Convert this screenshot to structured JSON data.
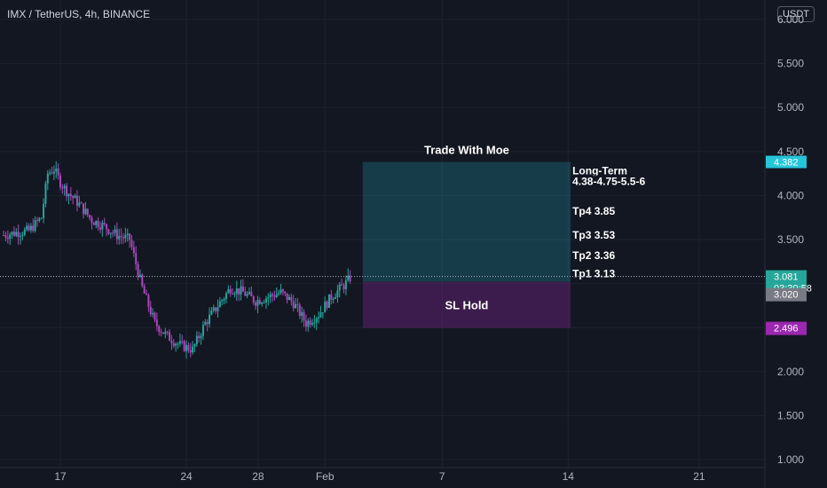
{
  "header": {
    "symbol_label": "IMX / TetherUS, 4h, BINANCE",
    "currency": "USDT"
  },
  "chart_data": {
    "type": "candlestick",
    "ylim": [
      1.0,
      6.0
    ],
    "y_ticks": [
      "6.000",
      "5.500",
      "5.000",
      "4.500",
      "4.000",
      "3.500",
      "3.000",
      "2.500",
      "2.000",
      "1.500",
      "1.000"
    ],
    "y_tick_values": [
      6.0,
      5.5,
      5.0,
      4.5,
      4.0,
      3.5,
      3.0,
      2.5,
      2.0,
      1.5,
      1.0
    ],
    "x_range": [
      0,
      42
    ],
    "x_ticks": [
      {
        "label": "17",
        "day": 4.5
      },
      {
        "label": "24",
        "day": 14.5
      },
      {
        "label": "28",
        "day": 20.2
      },
      {
        "label": "Feb",
        "day": 25.5
      },
      {
        "label": "7",
        "day": 34.8
      },
      {
        "label": "14",
        "day": 44.8
      },
      {
        "label": "21",
        "day": 55.2
      }
    ],
    "x_scale_days_visible": [
      0,
      65.5
    ],
    "price_path": [
      [
        0,
        3.55
      ],
      [
        1,
        3.58
      ],
      [
        2,
        3.6
      ],
      [
        3,
        3.75
      ],
      [
        3.5,
        4.25
      ],
      [
        4,
        4.3
      ],
      [
        4.5,
        4.15
      ],
      [
        5,
        4.05
      ],
      [
        6,
        3.9
      ],
      [
        7,
        3.72
      ],
      [
        8,
        3.65
      ],
      [
        9,
        3.55
      ],
      [
        10,
        3.5
      ],
      [
        11,
        2.95
      ],
      [
        12,
        2.55
      ],
      [
        13,
        2.4
      ],
      [
        14,
        2.3
      ],
      [
        15,
        2.25
      ],
      [
        16,
        2.55
      ],
      [
        17,
        2.75
      ],
      [
        18,
        2.95
      ],
      [
        19,
        2.9
      ],
      [
        20,
        2.8
      ],
      [
        21,
        2.85
      ],
      [
        22,
        2.9
      ],
      [
        23,
        2.78
      ],
      [
        24,
        2.55
      ],
      [
        25,
        2.65
      ],
      [
        26,
        2.85
      ],
      [
        27,
        2.98
      ],
      [
        27.6,
        3.08
      ]
    ],
    "last_price": 3.081,
    "countdown": "03:30:58",
    "other_price": 3.02,
    "stop_price": 2.496,
    "target_price": 4.382,
    "position": {
      "title": "Trade With Moe",
      "entry": 3.02,
      "target": 4.382,
      "stop": 2.496,
      "day_start": 28.5,
      "day_end": 45,
      "sl_label": "SL Hold",
      "labels": [
        {
          "text": "Long-Term",
          "price": 4.26
        },
        {
          "text": "4.38-4.75-5.5-6",
          "price": 4.14
        },
        {
          "text": "Tp4 3.85",
          "price": 3.8
        },
        {
          "text": "Tp3 3.53",
          "price": 3.53
        },
        {
          "text": "Tp2 3.36",
          "price": 3.3
        },
        {
          "text": "Tp1 3.13",
          "price": 3.09
        }
      ]
    },
    "colors": {
      "up": "#26a69a",
      "down": "#ab47bc",
      "target": "#26c6da",
      "stop": "#9c27b0",
      "grey": "#787b86"
    }
  }
}
